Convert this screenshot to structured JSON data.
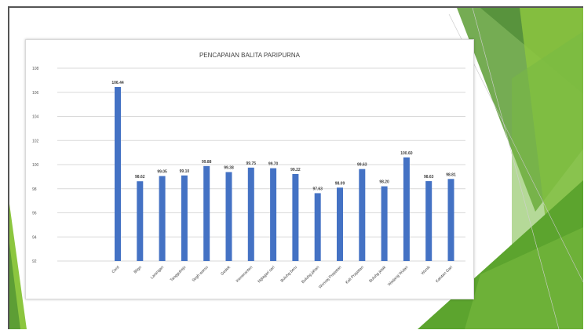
{
  "chart_data": {
    "type": "bar",
    "title": "PENCAPAIAN BALITA PARIPURNA",
    "categories": [
      "Cerd",
      "Bligo",
      "Larangan",
      "Tanggulrejo",
      "Segh warso",
      "Gedek",
      "Kemeranten",
      "Nglagari sari",
      "Buluhg beru",
      "Buluhg jahan",
      "Wonoaj Prapatan",
      "Kali Prapatan",
      "Buluhg jetak",
      "Wadang Wulan",
      "Wonik",
      "Kalutan Gari"
    ],
    "values": [
      106.44,
      98.62,
      99.05,
      99.1,
      99.88,
      99.38,
      99.75,
      99.7,
      99.22,
      97.63,
      98.09,
      99.63,
      98.2,
      100.6,
      98.63,
      98.81
    ],
    "data_labels": [
      "106.44",
      "98.62",
      "99.05",
      "99.10",
      "99.88",
      "99.38",
      "99.75",
      "99.70",
      "99.22",
      "97.63",
      "98.09",
      "99.63",
      "98.20",
      "100.60",
      "98.63",
      "98.81"
    ],
    "y_ticks": [
      "92",
      "94",
      "96",
      "98",
      "100",
      "102",
      "104",
      "106",
      "108"
    ],
    "ylim": [
      92,
      108
    ],
    "grid": true,
    "colors": {
      "bar": "#4472c4",
      "slide_accent": "#6aad2f"
    }
  }
}
